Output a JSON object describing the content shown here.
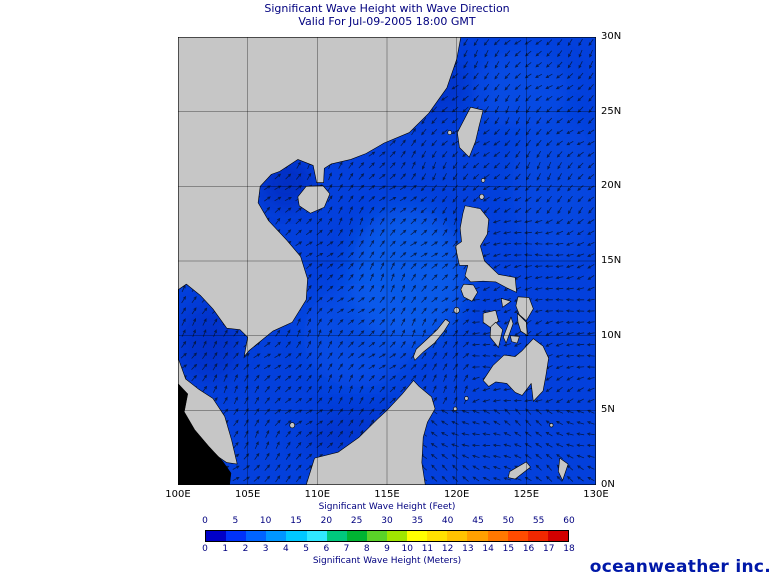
{
  "header": {
    "title": "Significant Wave Height with Wave Direction",
    "subtitle": "Valid For Jul-09-2005 18:00 GMT"
  },
  "map": {
    "lon_ticks": [
      "100E",
      "105E",
      "110E",
      "115E",
      "120E",
      "125E",
      "130E"
    ],
    "lat_ticks_top_to_bottom": [
      "30N",
      "25N",
      "20N",
      "15N",
      "10N",
      "5N",
      "0N"
    ],
    "lon_range_deg": [
      100,
      130
    ],
    "lat_range_deg": [
      0,
      30
    ],
    "grid_step_deg": 5,
    "ocean_color": "#0340dc",
    "land_color": "#c6c6c6",
    "outside_grid_color": "#000000",
    "arrow_color": "#061536",
    "wave_direction_regions": [
      {
        "name": "pacific-north-and-taiwan-strait",
        "lon": [
          117,
          130
        ],
        "lat": [
          18,
          30
        ],
        "bearing_deg": 225
      },
      {
        "name": "pacific-east-of-philippines",
        "lon": [
          121,
          130
        ],
        "lat": [
          5,
          18
        ],
        "bearing_deg": 255
      },
      {
        "name": "celebes-molucca-sea",
        "lon": [
          116,
          130
        ],
        "lat": [
          0,
          5
        ],
        "bearing_deg": 295
      },
      {
        "name": "south-china-sea-sw-monsoon",
        "lon": [
          100,
          121
        ],
        "lat": [
          3,
          30
        ],
        "bearing_deg": 42
      },
      {
        "name": "default",
        "lon": [
          100,
          130
        ],
        "lat": [
          0,
          30
        ],
        "bearing_deg": 45
      }
    ],
    "arrow_spacing_deg": 0.75
  },
  "legend": {
    "feet_label": "Significant Wave Height (Feet)",
    "meters_label": "Significant Wave Height (Meters)",
    "feet_ticks": [
      0,
      5,
      10,
      15,
      20,
      25,
      30,
      35,
      40,
      45,
      50,
      55,
      60
    ],
    "feet_max": 60,
    "meters_ticks": [
      0,
      1,
      2,
      3,
      4,
      5,
      6,
      7,
      8,
      9,
      10,
      11,
      12,
      13,
      14,
      15,
      16,
      17,
      18
    ],
    "meters_max": 18,
    "colors": [
      "#0000c8",
      "#0032fa",
      "#0064ff",
      "#0096ff",
      "#00c8ff",
      "#30e8ff",
      "#00c87d",
      "#00b432",
      "#5ad228",
      "#a0e600",
      "#ffff00",
      "#ffe100",
      "#ffc300",
      "#ffa000",
      "#ff7800",
      "#ff4b00",
      "#f02800",
      "#d20000"
    ]
  },
  "logo": {
    "text": "oceanweather inc."
  }
}
